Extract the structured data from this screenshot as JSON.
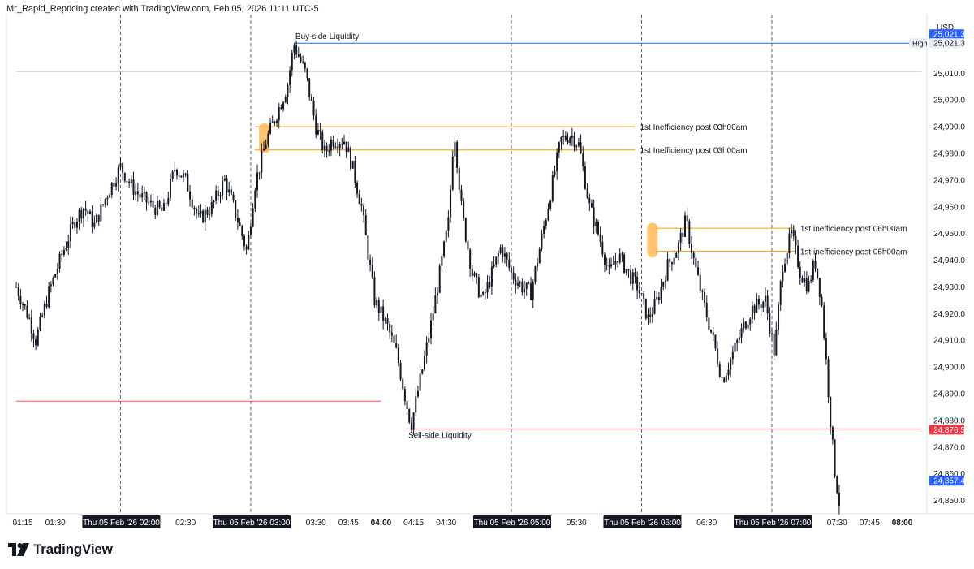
{
  "header": {
    "caption": "Mr_Rapid_Repricing created with TradingView.com, Feb 05, 2026 11:11 UTC-5"
  },
  "brand": {
    "name": "TradingView"
  },
  "chart_data": {
    "type": "candlestick",
    "currency": "USD",
    "ylim": [
      24845,
      25032
    ],
    "y_ticks": [
      {
        "label": "25,010.0",
        "value": 25010
      },
      {
        "label": "25,000.0",
        "value": 25000
      },
      {
        "label": "24,990.0",
        "value": 24990
      },
      {
        "label": "24,980.0",
        "value": 24980
      },
      {
        "label": "24,970.0",
        "value": 24970
      },
      {
        "label": "24,960.0",
        "value": 24960
      },
      {
        "label": "24,950.0",
        "value": 24950
      },
      {
        "label": "24,940.0",
        "value": 24940
      },
      {
        "label": "24,930.0",
        "value": 24930
      },
      {
        "label": "24,920.0",
        "value": 24920
      },
      {
        "label": "24,910.0",
        "value": 24910
      },
      {
        "label": "24,900.0",
        "value": 24900
      },
      {
        "label": "24,890.0",
        "value": 24890
      },
      {
        "label": "24,880.0",
        "value": 24880
      },
      {
        "label": "24,870.0",
        "value": 24870
      },
      {
        "label": "24,860.0",
        "value": 24860
      },
      {
        "label": "24,850.0",
        "value": 24850
      }
    ],
    "x_ticks": [
      {
        "label": "01:15",
        "t": 1.25
      },
      {
        "label": "01:30",
        "t": 1.5
      },
      {
        "label": "02:30",
        "t": 2.5
      },
      {
        "label": "03:30",
        "t": 3.5
      },
      {
        "label": "03:45",
        "t": 3.75
      },
      {
        "label": "04:00",
        "t": 4.0,
        "bold": true
      },
      {
        "label": "04:15",
        "t": 4.25
      },
      {
        "label": "04:30",
        "t": 4.5
      },
      {
        "label": "05:30",
        "t": 5.5
      },
      {
        "label": "06:30",
        "t": 6.5
      },
      {
        "label": "07:30",
        "t": 7.5
      },
      {
        "label": "07:45",
        "t": 7.75
      },
      {
        "label": "08:00",
        "t": 8.0,
        "bold": true
      }
    ],
    "session_markers": [
      {
        "label": "Thu 05 Feb '26   02:00",
        "t": 2.0
      },
      {
        "label": "Thu 05 Feb '26   03:00",
        "t": 3.0
      },
      {
        "label": "Thu 05 Feb '26   05:00",
        "t": 5.0
      },
      {
        "label": "Thu 05 Feb '26   06:00",
        "t": 6.0
      },
      {
        "label": "Thu 05 Feb '26   07:00",
        "t": 7.0
      }
    ],
    "price_labels": [
      {
        "value": 25021.3,
        "text": "25,021.3",
        "color": "#2962ff",
        "offset": -11
      },
      {
        "value": 25021.3,
        "text": "25,021.3",
        "color": "#e8ecf2",
        "text_color": "#131722",
        "tag": "High"
      },
      {
        "value": 24876.5,
        "text": "24,876.5",
        "color": "#f23645"
      },
      {
        "value": 24857.4,
        "text": "24,857.4",
        "color": "#2962ff"
      }
    ],
    "levels": [
      {
        "name": "Buy-side Liquidity",
        "value": 25021.3,
        "t_start": 3.33,
        "t_end": 8.15,
        "color": "#2962ff",
        "label": "Buy-side Liquidity",
        "label_pos": "above-left"
      },
      {
        "name": "Previous level",
        "value": 25010.7,
        "t_start": 1.2,
        "t_end": 8.15,
        "color": "#b2b5be",
        "label": ""
      },
      {
        "name": "Sell-side Liquidity",
        "value": 24876.8,
        "t_start": 4.19,
        "t_end": 8.15,
        "color": "#f23645",
        "label": "Sell-side Liquidity",
        "label_pos": "below-left"
      },
      {
        "name": "Low level",
        "value": 24887.2,
        "t_start": 1.2,
        "t_end": 4.0,
        "color": "#f7525f",
        "label": ""
      },
      {
        "name": "ineff-03-upper",
        "value": 24990.0,
        "t_start": 3.03,
        "t_end": 5.95,
        "color": "#ff9800",
        "label": "1st Inefficiency post 03h00am",
        "label_pos": "right"
      },
      {
        "name": "ineff-03-lower",
        "value": 24981.3,
        "t_start": 3.03,
        "t_end": 5.95,
        "color": "#ff9800",
        "label": "1st Inefficiency post 03h00am",
        "label_pos": "right"
      },
      {
        "name": "ineff-06-upper",
        "value": 24952.0,
        "t_start": 6.1,
        "t_end": 7.18,
        "color": "#ff9800",
        "label": "1st inefficiency post 06h00am",
        "label_pos": "right"
      },
      {
        "name": "ineff-06-lower",
        "value": 24943.4,
        "t_start": 6.1,
        "t_end": 7.18,
        "color": "#ff9800",
        "label": "1st inefficiency post 06h00am",
        "label_pos": "right"
      }
    ],
    "fvg_zones": [
      {
        "t": 3.1,
        "y_top": 24991.3,
        "y_bottom": 24980.0
      },
      {
        "t": 6.08,
        "y_top": 24954.0,
        "y_bottom": 24941.0
      }
    ],
    "price_path": [
      [
        1.2,
        24930
      ],
      [
        1.3,
        24918
      ],
      [
        1.35,
        24910
      ],
      [
        1.45,
        24928
      ],
      [
        1.55,
        24942
      ],
      [
        1.65,
        24955
      ],
      [
        1.72,
        24960
      ],
      [
        1.8,
        24953
      ],
      [
        1.9,
        24965
      ],
      [
        2.0,
        24975
      ],
      [
        2.08,
        24968
      ],
      [
        2.15,
        24964
      ],
      [
        2.25,
        24960
      ],
      [
        2.33,
        24958
      ],
      [
        2.42,
        24975
      ],
      [
        2.5,
        24970
      ],
      [
        2.6,
        24955
      ],
      [
        2.7,
        24960
      ],
      [
        2.8,
        24970
      ],
      [
        2.9,
        24955
      ],
      [
        2.97,
        24943
      ],
      [
        3.03,
        24968
      ],
      [
        3.12,
        24985
      ],
      [
        3.2,
        24995
      ],
      [
        3.28,
        25005
      ],
      [
        3.33,
        25021
      ],
      [
        3.42,
        25010
      ],
      [
        3.5,
        24990
      ],
      [
        3.57,
        24980
      ],
      [
        3.62,
        24985
      ],
      [
        3.72,
        24985
      ],
      [
        3.78,
        24975
      ],
      [
        3.85,
        24960
      ],
      [
        3.95,
        24925
      ],
      [
        4.05,
        24915
      ],
      [
        4.12,
        24905
      ],
      [
        4.18,
        24890
      ],
      [
        4.23,
        24878
      ],
      [
        4.3,
        24895
      ],
      [
        4.38,
        24915
      ],
      [
        4.45,
        24935
      ],
      [
        4.52,
        24955
      ],
      [
        4.56,
        24990
      ],
      [
        4.62,
        24958
      ],
      [
        4.7,
        24935
      ],
      [
        4.78,
        24925
      ],
      [
        4.85,
        24935
      ],
      [
        4.92,
        24945
      ],
      [
        5.0,
        24935
      ],
      [
        5.08,
        24930
      ],
      [
        5.15,
        24928
      ],
      [
        5.22,
        24945
      ],
      [
        5.3,
        24965
      ],
      [
        5.38,
        24985
      ],
      [
        5.46,
        24987
      ],
      [
        5.52,
        24983
      ],
      [
        5.6,
        24960
      ],
      [
        5.68,
        24948
      ],
      [
        5.75,
        24935
      ],
      [
        5.82,
        24942
      ],
      [
        5.9,
        24935
      ],
      [
        5.97,
        24930
      ],
      [
        6.05,
        24918
      ],
      [
        6.12,
        24925
      ],
      [
        6.2,
        24938
      ],
      [
        6.28,
        24945
      ],
      [
        6.34,
        24955
      ],
      [
        6.4,
        24940
      ],
      [
        6.47,
        24925
      ],
      [
        6.55,
        24910
      ],
      [
        6.62,
        24895
      ],
      [
        6.7,
        24905
      ],
      [
        6.78,
        24915
      ],
      [
        6.85,
        24922
      ],
      [
        6.95,
        24925
      ],
      [
        7.02,
        24905
      ],
      [
        7.08,
        24938
      ],
      [
        7.15,
        24950
      ],
      [
        7.22,
        24935
      ],
      [
        7.28,
        24930
      ],
      [
        7.33,
        24940
      ],
      [
        7.38,
        24925
      ],
      [
        7.42,
        24900
      ],
      [
        7.45,
        24880
      ],
      [
        7.48,
        24862
      ],
      [
        7.52,
        24848
      ]
    ]
  }
}
